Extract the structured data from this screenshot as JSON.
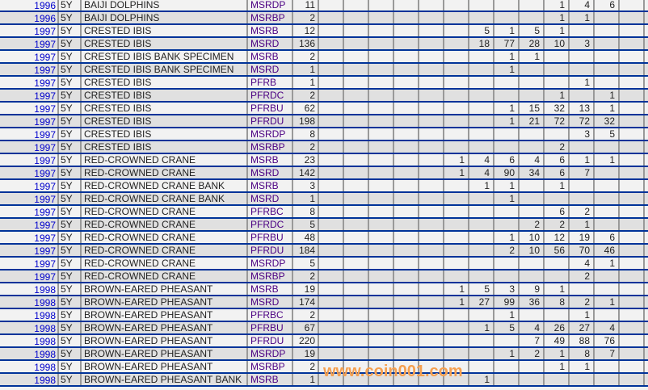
{
  "watermark": "www.coin001.com",
  "colors": {
    "link": "#0000cc",
    "row_border": "#003399",
    "col_border": "#999999",
    "row_alt": "#e0e0e0",
    "row_base": "#f2f2f2"
  },
  "rows": [
    [
      "1996",
      "5Y",
      "BAIJI DOLPHINS",
      "MSRDP",
      "11",
      [
        "",
        "",
        "",
        "",
        "",
        "",
        "",
        "",
        "",
        "1",
        "4",
        "6",
        ""
      ]
    ],
    [
      "1996",
      "5Y",
      "BAIJI DOLPHINS",
      "MSRBP",
      "2",
      [
        "",
        "",
        "",
        "",
        "",
        "",
        "",
        "",
        "",
        "1",
        "1",
        "",
        ""
      ]
    ],
    [
      "1997",
      "5Y",
      "CRESTED IBIS",
      "MSRB",
      "12",
      [
        "",
        "",
        "",
        "",
        "",
        "",
        "5",
        "1",
        "5",
        "1",
        "",
        "",
        ""
      ]
    ],
    [
      "1997",
      "5Y",
      "CRESTED IBIS",
      "MSRD",
      "136",
      [
        "",
        "",
        "",
        "",
        "",
        "",
        "18",
        "77",
        "28",
        "10",
        "3",
        "",
        ""
      ]
    ],
    [
      "1997",
      "5Y",
      "CRESTED IBIS BANK SPECIMEN",
      "MSRB",
      "2",
      [
        "",
        "",
        "",
        "",
        "",
        "",
        "",
        "1",
        "1",
        "",
        "",
        "",
        ""
      ]
    ],
    [
      "1997",
      "5Y",
      "CRESTED IBIS BANK SPECIMEN",
      "MSRD",
      "1",
      [
        "",
        "",
        "",
        "",
        "",
        "",
        "",
        "1",
        "",
        "",
        "",
        "",
        ""
      ]
    ],
    [
      "1997",
      "5Y",
      "CRESTED IBIS",
      "PFRB",
      "1",
      [
        "",
        "",
        "",
        "",
        "",
        "",
        "",
        "",
        "",
        "",
        "1",
        "",
        ""
      ]
    ],
    [
      "1997",
      "5Y",
      "CRESTED IBIS",
      "PFRDC",
      "2",
      [
        "",
        "",
        "",
        "",
        "",
        "",
        "",
        "",
        "",
        "1",
        "",
        "1",
        ""
      ]
    ],
    [
      "1997",
      "5Y",
      "CRESTED IBIS",
      "PFRBU",
      "62",
      [
        "",
        "",
        "",
        "",
        "",
        "",
        "",
        "1",
        "15",
        "32",
        "13",
        "1",
        ""
      ]
    ],
    [
      "1997",
      "5Y",
      "CRESTED IBIS",
      "PFRDU",
      "198",
      [
        "",
        "",
        "",
        "",
        "",
        "",
        "",
        "1",
        "21",
        "72",
        "72",
        "32",
        ""
      ]
    ],
    [
      "1997",
      "5Y",
      "CRESTED IBIS",
      "MSRDP",
      "8",
      [
        "",
        "",
        "",
        "",
        "",
        "",
        "",
        "",
        "",
        "",
        "3",
        "5",
        ""
      ]
    ],
    [
      "1997",
      "5Y",
      "CRESTED IBIS",
      "MSRBP",
      "2",
      [
        "",
        "",
        "",
        "",
        "",
        "",
        "",
        "",
        "",
        "2",
        "",
        "",
        ""
      ]
    ],
    [
      "1997",
      "5Y",
      "RED-CROWNED CRANE",
      "MSRB",
      "23",
      [
        "",
        "",
        "",
        "",
        "",
        "1",
        "4",
        "6",
        "4",
        "6",
        "1",
        "1",
        ""
      ]
    ],
    [
      "1997",
      "5Y",
      "RED-CROWNED CRANE",
      "MSRD",
      "142",
      [
        "",
        "",
        "",
        "",
        "",
        "1",
        "4",
        "90",
        "34",
        "6",
        "7",
        "",
        ""
      ]
    ],
    [
      "1997",
      "5Y",
      "RED-CROWNED CRANE BANK",
      "MSRB",
      "3",
      [
        "",
        "",
        "",
        "",
        "",
        "",
        "1",
        "1",
        "",
        "1",
        "",
        "",
        ""
      ]
    ],
    [
      "1997",
      "5Y",
      "RED-CROWNED CRANE BANK",
      "MSRD",
      "1",
      [
        "",
        "",
        "",
        "",
        "",
        "",
        "",
        "1",
        "",
        "",
        "",
        "",
        ""
      ]
    ],
    [
      "1997",
      "5Y",
      "RED-CROWNED CRANE",
      "PFRBC",
      "8",
      [
        "",
        "",
        "",
        "",
        "",
        "",
        "",
        "",
        "",
        "6",
        "2",
        "",
        ""
      ]
    ],
    [
      "1997",
      "5Y",
      "RED-CROWNED CRANE",
      "PFRDC",
      "5",
      [
        "",
        "",
        "",
        "",
        "",
        "",
        "",
        "",
        "2",
        "2",
        "1",
        "",
        ""
      ]
    ],
    [
      "1997",
      "5Y",
      "RED-CROWNED CRANE",
      "PFRBU",
      "48",
      [
        "",
        "",
        "",
        "",
        "",
        "",
        "",
        "1",
        "10",
        "12",
        "19",
        "6",
        ""
      ]
    ],
    [
      "1997",
      "5Y",
      "RED-CROWNED CRANE",
      "PFRDU",
      "184",
      [
        "",
        "",
        "",
        "",
        "",
        "",
        "",
        "2",
        "10",
        "56",
        "70",
        "46",
        ""
      ]
    ],
    [
      "1997",
      "5Y",
      "RED-CROWNED CRANE",
      "MSRDP",
      "5",
      [
        "",
        "",
        "",
        "",
        "",
        "",
        "",
        "",
        "",
        "",
        "4",
        "1",
        ""
      ]
    ],
    [
      "1997",
      "5Y",
      "RED-CROWNED CRANE",
      "MSRBP",
      "2",
      [
        "",
        "",
        "",
        "",
        "",
        "",
        "",
        "",
        "",
        "",
        "2",
        "",
        ""
      ]
    ],
    [
      "1998",
      "5Y",
      "BROWN-EARED PHEASANT",
      "MSRB",
      "19",
      [
        "",
        "",
        "",
        "",
        "",
        "1",
        "5",
        "3",
        "9",
        "1",
        "",
        "",
        ""
      ]
    ],
    [
      "1998",
      "5Y",
      "BROWN-EARED PHEASANT",
      "MSRD",
      "174",
      [
        "",
        "",
        "",
        "",
        "",
        "1",
        "27",
        "99",
        "36",
        "8",
        "2",
        "1",
        ""
      ]
    ],
    [
      "1998",
      "5Y",
      "BROWN-EARED PHEASANT",
      "PFRBC",
      "2",
      [
        "",
        "",
        "",
        "",
        "",
        "",
        "",
        "1",
        "",
        "",
        "1",
        "",
        ""
      ]
    ],
    [
      "1998",
      "5Y",
      "BROWN-EARED PHEASANT",
      "PFRBU",
      "67",
      [
        "",
        "",
        "",
        "",
        "",
        "",
        "1",
        "5",
        "4",
        "26",
        "27",
        "4",
        ""
      ]
    ],
    [
      "1998",
      "5Y",
      "BROWN-EARED PHEASANT",
      "PFRDU",
      "220",
      [
        "",
        "",
        "",
        "",
        "",
        "",
        "",
        "",
        "7",
        "49",
        "88",
        "76",
        ""
      ]
    ],
    [
      "1998",
      "5Y",
      "BROWN-EARED PHEASANT",
      "MSRDP",
      "19",
      [
        "",
        "",
        "",
        "",
        "",
        "",
        "",
        "1",
        "2",
        "1",
        "8",
        "7",
        ""
      ]
    ],
    [
      "1998",
      "5Y",
      "BROWN-EARED PHEASANT",
      "MSRBP",
      "2",
      [
        "",
        "",
        "",
        "",
        "",
        "",
        "",
        "",
        "",
        "1",
        "1",
        "",
        ""
      ]
    ],
    [
      "1998",
      "5Y",
      "BROWN-EARED PHEASANT BANK",
      "MSRB",
      "1",
      [
        "",
        "",
        "",
        "",
        "",
        "",
        "1",
        "",
        "",
        "",
        "",
        "",
        ""
      ]
    ]
  ]
}
